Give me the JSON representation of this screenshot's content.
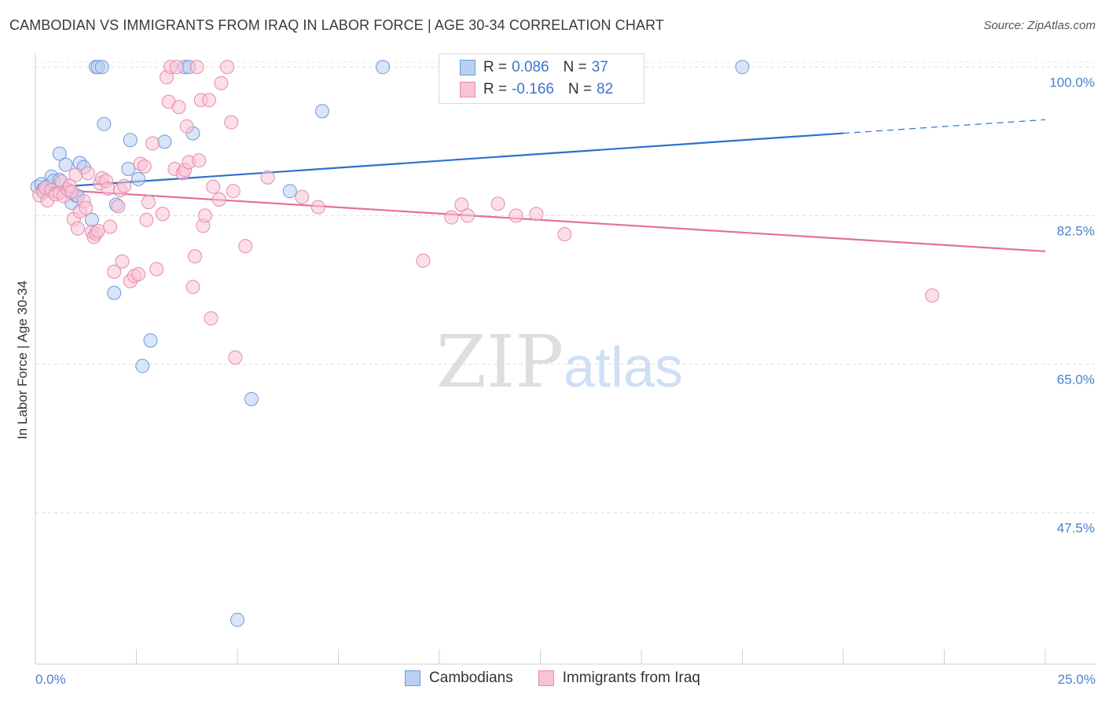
{
  "title": "CAMBODIAN VS IMMIGRANTS FROM IRAQ IN LABOR FORCE | AGE 30-34 CORRELATION CHART",
  "source": "Source: ZipAtlas.com",
  "watermark": {
    "zip": "ZIP",
    "atlas": "atlas"
  },
  "legend": {
    "rows": [
      {
        "r_label": "R =",
        "r_value": "0.086",
        "n_label": "N =",
        "n_value": "37",
        "color": "#a9c6f0",
        "border": "#6f9ad8"
      },
      {
        "r_label": "R =",
        "r_value": "-0.166",
        "n_label": "N =",
        "n_value": "82",
        "color": "#f7bfd3",
        "border": "#e68aab"
      }
    ]
  },
  "bottom_legend": [
    "Cambodians",
    "Immigrants from Iraq"
  ],
  "colors": {
    "blue": "#5b8fd8",
    "blue_fill": "#b9d0f3",
    "pink": "#e36f98",
    "pink_fill": "#f7c3d5",
    "grid": "#dcdcdc",
    "axis_label": "#4a7fd0"
  },
  "chart_data": {
    "type": "scatter",
    "title": "CAMBODIAN VS IMMIGRANTS FROM IRAQ IN LABOR FORCE | AGE 30-34 CORRELATION CHART",
    "xlabel": "",
    "ylabel": "In Labor Force | Age 30-34",
    "xlim": [
      0,
      25
    ],
    "ylim": [
      29.7,
      101.6
    ],
    "x_tick_labels": [
      {
        "value": 0,
        "label": "0.0%"
      },
      {
        "value": 25,
        "label": "25.0%"
      }
    ],
    "y_ticks": [
      {
        "value": 100,
        "label": "100.0%"
      },
      {
        "value": 82.5,
        "label": "82.5%"
      },
      {
        "value": 65,
        "label": "65.0%"
      },
      {
        "value": 47.5,
        "label": "47.5%"
      }
    ],
    "series": [
      {
        "name": "Cambodians",
        "color": "#5b8fd8",
        "trend": {
          "x0": 0,
          "y0": 85.7,
          "x1": 20,
          "y1": 92.2,
          "dash_to_x": 25,
          "dash_to_y": 93.8
        },
        "points": [
          [
            0.05,
            85.9
          ],
          [
            0.15,
            86.2
          ],
          [
            0.2,
            85.6
          ],
          [
            0.3,
            86.0
          ],
          [
            0.4,
            87.1
          ],
          [
            0.45,
            86.6
          ],
          [
            0.6,
            89.8
          ],
          [
            0.75,
            88.5
          ],
          [
            0.85,
            85.4
          ],
          [
            0.9,
            84.0
          ],
          [
            1.0,
            84.9
          ],
          [
            1.1,
            88.7
          ],
          [
            1.2,
            88.2
          ],
          [
            1.4,
            82.0
          ],
          [
            1.5,
            100
          ],
          [
            1.55,
            100
          ],
          [
            1.65,
            100
          ],
          [
            1.7,
            93.3
          ],
          [
            1.95,
            73.4
          ],
          [
            2.0,
            83.8
          ],
          [
            2.3,
            88.0
          ],
          [
            2.35,
            91.4
          ],
          [
            2.55,
            86.8
          ],
          [
            2.65,
            64.8
          ],
          [
            2.85,
            67.8
          ],
          [
            3.2,
            91.2
          ],
          [
            3.7,
            100
          ],
          [
            3.8,
            100
          ],
          [
            3.9,
            92.2
          ],
          [
            5.0,
            34.9
          ],
          [
            5.35,
            60.9
          ],
          [
            6.3,
            85.4
          ],
          [
            7.1,
            94.8
          ],
          [
            8.6,
            100
          ],
          [
            17.5,
            100
          ],
          [
            0.6,
            86.7
          ],
          [
            1.05,
            84.8
          ]
        ]
      },
      {
        "name": "Immigrants from Iraq",
        "color": "#e36f98",
        "trend": {
          "x0": 0,
          "y0": 85.7,
          "x1": 25,
          "y1": 78.3
        },
        "points": [
          [
            0.1,
            84.9
          ],
          [
            0.2,
            85.3
          ],
          [
            0.25,
            85.8
          ],
          [
            0.3,
            84.3
          ],
          [
            0.4,
            85.5
          ],
          [
            0.5,
            85.0
          ],
          [
            0.6,
            85.2
          ],
          [
            0.65,
            86.5
          ],
          [
            0.7,
            84.8
          ],
          [
            0.8,
            85.6
          ],
          [
            0.85,
            86.0
          ],
          [
            0.9,
            85.3
          ],
          [
            0.95,
            82.1
          ],
          [
            1.0,
            87.3
          ],
          [
            1.05,
            81.0
          ],
          [
            1.1,
            83.0
          ],
          [
            1.2,
            84.2
          ],
          [
            1.25,
            83.4
          ],
          [
            1.3,
            87.5
          ],
          [
            1.4,
            80.6
          ],
          [
            1.45,
            80.0
          ],
          [
            1.5,
            80.4
          ],
          [
            1.55,
            80.7
          ],
          [
            1.6,
            86.3
          ],
          [
            1.65,
            86.9
          ],
          [
            1.75,
            86.6
          ],
          [
            1.8,
            85.7
          ],
          [
            1.85,
            81.2
          ],
          [
            1.95,
            75.9
          ],
          [
            2.05,
            83.6
          ],
          [
            2.1,
            85.5
          ],
          [
            2.15,
            77.1
          ],
          [
            2.2,
            86.0
          ],
          [
            2.35,
            74.8
          ],
          [
            2.45,
            75.4
          ],
          [
            2.55,
            75.6
          ],
          [
            2.6,
            88.6
          ],
          [
            2.7,
            88.3
          ],
          [
            2.75,
            82.0
          ],
          [
            2.8,
            84.1
          ],
          [
            2.9,
            91.0
          ],
          [
            3.0,
            76.2
          ],
          [
            3.15,
            82.7
          ],
          [
            3.25,
            98.8
          ],
          [
            3.3,
            95.9
          ],
          [
            3.35,
            100
          ],
          [
            3.45,
            88.0
          ],
          [
            3.5,
            100
          ],
          [
            3.55,
            95.3
          ],
          [
            3.65,
            87.5
          ],
          [
            3.7,
            87.9
          ],
          [
            3.75,
            93.0
          ],
          [
            3.8,
            88.8
          ],
          [
            3.9,
            74.1
          ],
          [
            3.95,
            77.7
          ],
          [
            4.0,
            100
          ],
          [
            4.05,
            89.0
          ],
          [
            4.1,
            96.1
          ],
          [
            4.15,
            81.3
          ],
          [
            4.2,
            82.5
          ],
          [
            4.3,
            96.1
          ],
          [
            4.35,
            70.4
          ],
          [
            4.4,
            85.9
          ],
          [
            4.55,
            84.4
          ],
          [
            4.6,
            98.1
          ],
          [
            4.75,
            100
          ],
          [
            4.85,
            93.5
          ],
          [
            4.95,
            65.8
          ],
          [
            4.9,
            85.4
          ],
          [
            5.2,
            78.9
          ],
          [
            5.75,
            87.0
          ],
          [
            6.6,
            84.7
          ],
          [
            7.0,
            83.5
          ],
          [
            9.6,
            77.2
          ],
          [
            10.3,
            82.3
          ],
          [
            10.55,
            83.8
          ],
          [
            10.7,
            82.5
          ],
          [
            11.45,
            83.9
          ],
          [
            11.9,
            82.5
          ],
          [
            12.4,
            82.7
          ],
          [
            13.1,
            80.3
          ],
          [
            22.2,
            73.1
          ]
        ]
      }
    ]
  }
}
